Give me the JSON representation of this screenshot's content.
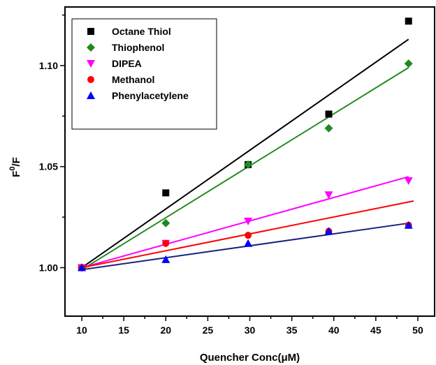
{
  "chart_data": {
    "type": "scatter",
    "title": "",
    "xlabel": "Quencher Conc(μM)",
    "ylabel_parts": {
      "base": "F",
      "sup": "0",
      "rest": "/F"
    },
    "xlim": [
      8,
      52
    ],
    "ylim": [
      0.976,
      1.129
    ],
    "x_ticks": [
      10,
      15,
      20,
      25,
      30,
      35,
      40,
      45,
      50
    ],
    "x_tick_labels": [
      "10",
      "15",
      "20",
      "25",
      "30",
      "35",
      "40",
      "45",
      "50"
    ],
    "y_ticks": [
      1.0,
      1.05,
      1.1
    ],
    "y_tick_labels": [
      "1.00",
      "1.05",
      "1.10"
    ],
    "grid": false,
    "legend_position": "top-left",
    "series": [
      {
        "name": "Octane Thiol",
        "color": "#000000",
        "marker": "square",
        "x": [
          10,
          20,
          29.8,
          39.4,
          48.9
        ],
        "y": [
          1.0,
          1.037,
          1.051,
          1.076,
          1.122
        ],
        "fit": {
          "x": [
            10,
            48.9
          ],
          "y": [
            1.0,
            1.113
          ]
        }
      },
      {
        "name": "Thiophenol",
        "color": "#1f8a1f",
        "marker": "diamond",
        "x": [
          10,
          20,
          29.8,
          39.4,
          48.9
        ],
        "y": [
          1.0,
          1.022,
          1.051,
          1.069,
          1.101
        ],
        "fit": {
          "x": [
            10,
            48.9
          ],
          "y": [
            0.999,
            1.099
          ]
        }
      },
      {
        "name": "DIPEA",
        "color": "#ff00ff",
        "marker": "triangle-down",
        "x": [
          10,
          20,
          29.8,
          39.4,
          48.9
        ],
        "y": [
          1.0,
          1.012,
          1.023,
          1.036,
          1.043
        ],
        "fit": {
          "x": [
            10,
            48.9
          ],
          "y": [
            1.0,
            1.045
          ]
        }
      },
      {
        "name": "Methanol",
        "color": "#ff0000",
        "marker": "circle",
        "x": [
          10,
          20,
          29.8,
          39.4,
          48.9
        ],
        "y": [
          1.0,
          1.012,
          1.016,
          1.018,
          1.021
        ],
        "fit": {
          "x": [
            10,
            49.5
          ],
          "y": [
            1.0,
            1.033
          ]
        }
      },
      {
        "name": "Phenylacetylene",
        "color": "#0000ff",
        "line_color": "#1a237e",
        "marker": "triangle-up",
        "x": [
          10,
          20,
          29.8,
          39.4,
          48.9
        ],
        "y": [
          1.0,
          1.004,
          1.012,
          1.018,
          1.021
        ],
        "fit": {
          "x": [
            10,
            48.9
          ],
          "y": [
            0.999,
            1.022
          ]
        }
      }
    ]
  }
}
